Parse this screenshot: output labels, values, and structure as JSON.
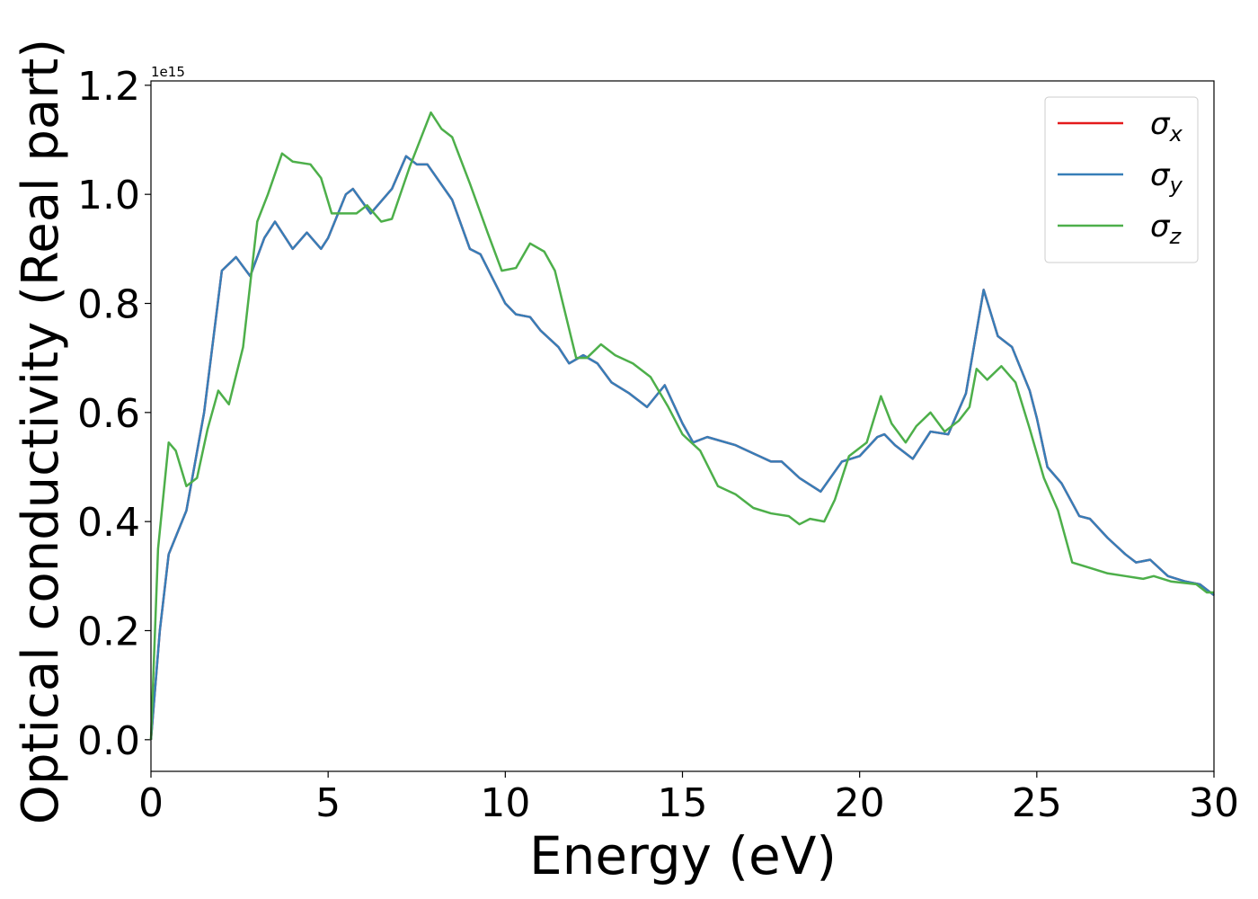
{
  "chart_data": {
    "type": "line",
    "xlabel": "Energy (eV)",
    "ylabel": "Optical conductivity (Real part)",
    "y_offset_label": "1e15",
    "xlim": [
      0,
      30
    ],
    "xticks": [
      0,
      5,
      10,
      15,
      20,
      25,
      30
    ],
    "ylim": [
      -0.058,
      1.208
    ],
    "yticks": [
      {
        "value": 0,
        "label": "0.0"
      },
      {
        "value": 0.2,
        "label": "0.2"
      },
      {
        "value": 0.4,
        "label": "0.4"
      },
      {
        "value": 0.6,
        "label": "0.6"
      },
      {
        "value": 0.8,
        "label": "0.8"
      },
      {
        "value": 1,
        "label": "1.0"
      },
      {
        "value": 1.2,
        "label": "1.2"
      }
    ],
    "legend": "upper right",
    "series": [
      {
        "name": "σx",
        "color": "#e41a1c",
        "x": [
          0,
          0.25,
          0.5,
          1.0,
          1.5,
          2.0,
          2.4,
          2.8,
          3.2,
          3.5,
          4.0,
          4.4,
          4.8,
          5.0,
          5.5,
          5.7,
          6.2,
          6.8,
          7.2,
          7.5,
          7.8,
          8.5,
          9.0,
          9.3,
          10.0,
          10.3,
          10.7,
          11.0,
          11.5,
          11.8,
          12.2,
          12.6,
          13.0,
          13.5,
          14.0,
          14.5,
          15.0,
          15.3,
          15.7,
          16.5,
          17.0,
          17.5,
          17.8,
          18.3,
          18.9,
          19.5,
          20.0,
          20.5,
          20.7,
          21.0,
          21.5,
          22.0,
          22.5,
          23.0,
          23.5,
          23.9,
          24.3,
          24.8,
          25.0,
          25.3,
          25.7,
          26.2,
          26.5,
          27.0,
          27.5,
          27.8,
          28.2,
          28.7,
          29.2,
          29.6,
          30.0
        ],
        "values": [
          0,
          0.2,
          0.34,
          0.42,
          0.6,
          0.86,
          0.885,
          0.85,
          0.92,
          0.95,
          0.9,
          0.93,
          0.9,
          0.92,
          1.0,
          1.01,
          0.965,
          1.01,
          1.07,
          1.055,
          1.055,
          0.99,
          0.9,
          0.89,
          0.8,
          0.78,
          0.775,
          0.75,
          0.72,
          0.69,
          0.705,
          0.69,
          0.655,
          0.635,
          0.61,
          0.65,
          0.58,
          0.545,
          0.555,
          0.54,
          0.525,
          0.51,
          0.51,
          0.48,
          0.455,
          0.51,
          0.52,
          0.555,
          0.56,
          0.54,
          0.515,
          0.565,
          0.56,
          0.635,
          0.825,
          0.74,
          0.72,
          0.64,
          0.59,
          0.5,
          0.47,
          0.41,
          0.405,
          0.37,
          0.34,
          0.325,
          0.33,
          0.3,
          0.29,
          0.285,
          0.265
        ]
      },
      {
        "name": "σy",
        "color": "#377eb8",
        "x": [
          0,
          0.25,
          0.5,
          1.0,
          1.5,
          2.0,
          2.4,
          2.8,
          3.2,
          3.5,
          4.0,
          4.4,
          4.8,
          5.0,
          5.5,
          5.7,
          6.2,
          6.8,
          7.2,
          7.5,
          7.8,
          8.5,
          9.0,
          9.3,
          10.0,
          10.3,
          10.7,
          11.0,
          11.5,
          11.8,
          12.2,
          12.6,
          13.0,
          13.5,
          14.0,
          14.5,
          15.0,
          15.3,
          15.7,
          16.5,
          17.0,
          17.5,
          17.8,
          18.3,
          18.9,
          19.5,
          20.0,
          20.5,
          20.7,
          21.0,
          21.5,
          22.0,
          22.5,
          23.0,
          23.5,
          23.9,
          24.3,
          24.8,
          25.0,
          25.3,
          25.7,
          26.2,
          26.5,
          27.0,
          27.5,
          27.8,
          28.2,
          28.7,
          29.2,
          29.6,
          30.0
        ],
        "values": [
          0,
          0.2,
          0.34,
          0.42,
          0.6,
          0.86,
          0.885,
          0.85,
          0.92,
          0.95,
          0.9,
          0.93,
          0.9,
          0.92,
          1.0,
          1.01,
          0.965,
          1.01,
          1.07,
          1.055,
          1.055,
          0.99,
          0.9,
          0.89,
          0.8,
          0.78,
          0.775,
          0.75,
          0.72,
          0.69,
          0.705,
          0.69,
          0.655,
          0.635,
          0.61,
          0.65,
          0.58,
          0.545,
          0.555,
          0.54,
          0.525,
          0.51,
          0.51,
          0.48,
          0.455,
          0.51,
          0.52,
          0.555,
          0.56,
          0.54,
          0.515,
          0.565,
          0.56,
          0.635,
          0.825,
          0.74,
          0.72,
          0.64,
          0.59,
          0.5,
          0.47,
          0.41,
          0.405,
          0.37,
          0.34,
          0.325,
          0.33,
          0.3,
          0.29,
          0.285,
          0.265
        ]
      },
      {
        "name": "σz",
        "color": "#4daf4a",
        "x": [
          0,
          0.2,
          0.5,
          0.7,
          1.0,
          1.3,
          1.6,
          1.9,
          2.2,
          2.6,
          3.0,
          3.3,
          3.7,
          4.0,
          4.5,
          4.8,
          5.1,
          5.5,
          5.8,
          6.1,
          6.5,
          6.8,
          7.3,
          7.9,
          8.2,
          8.5,
          9.0,
          9.5,
          9.9,
          10.3,
          10.7,
          11.1,
          11.4,
          12.0,
          12.3,
          12.7,
          13.1,
          13.6,
          14.1,
          14.6,
          15.0,
          15.5,
          16.0,
          16.5,
          17.0,
          17.5,
          18.0,
          18.3,
          18.6,
          19.0,
          19.3,
          19.7,
          20.2,
          20.6,
          20.9,
          21.3,
          21.6,
          22.0,
          22.4,
          22.8,
          23.1,
          23.3,
          23.6,
          24.0,
          24.4,
          24.8,
          25.2,
          25.6,
          26.0,
          26.5,
          27.0,
          27.5,
          28.0,
          28.3,
          28.8,
          29.5,
          29.8,
          30.0
        ],
        "values": [
          0,
          0.35,
          0.545,
          0.53,
          0.465,
          0.48,
          0.57,
          0.64,
          0.615,
          0.72,
          0.95,
          1.0,
          1.075,
          1.06,
          1.055,
          1.03,
          0.965,
          0.965,
          0.965,
          0.98,
          0.95,
          0.955,
          1.05,
          1.15,
          1.12,
          1.105,
          1.02,
          0.93,
          0.86,
          0.865,
          0.91,
          0.895,
          0.86,
          0.7,
          0.7,
          0.725,
          0.705,
          0.69,
          0.665,
          0.61,
          0.56,
          0.53,
          0.465,
          0.45,
          0.425,
          0.415,
          0.41,
          0.395,
          0.405,
          0.4,
          0.44,
          0.52,
          0.545,
          0.63,
          0.58,
          0.545,
          0.575,
          0.6,
          0.565,
          0.585,
          0.61,
          0.68,
          0.66,
          0.685,
          0.655,
          0.57,
          0.48,
          0.42,
          0.325,
          0.315,
          0.305,
          0.3,
          0.295,
          0.3,
          0.29,
          0.285,
          0.27,
          0.27
        ]
      }
    ]
  }
}
